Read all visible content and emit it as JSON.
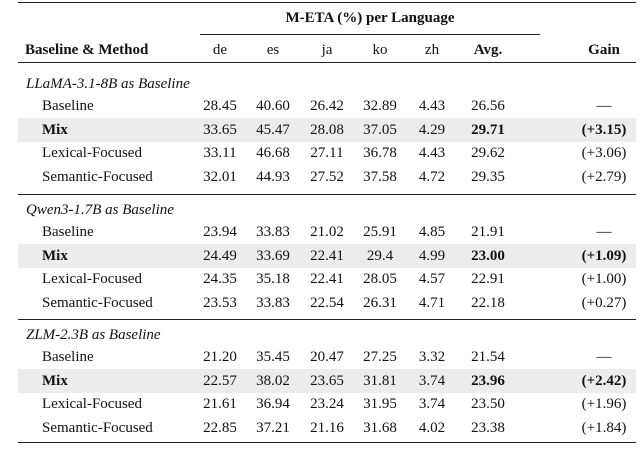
{
  "table": {
    "group_header": "M-ETA (%) per Language",
    "columns": [
      "Baseline & Method",
      "de",
      "es",
      "ja",
      "ko",
      "zh",
      "Avg.",
      "Gain"
    ],
    "groups": [
      {
        "title": "LLaMA-3.1-8B as Baseline",
        "rows": [
          [
            "Baseline",
            "28.45",
            "40.60",
            "26.42",
            "32.89",
            "4.43",
            "26.56",
            "—"
          ],
          [
            "Mix",
            "33.65",
            "45.47",
            "28.08",
            "37.05",
            "4.29",
            "29.71",
            "(+3.15)"
          ],
          [
            "Lexical-Focused",
            "33.11",
            "46.68",
            "27.11",
            "36.78",
            "4.43",
            "29.62",
            "(+3.06)"
          ],
          [
            "Semantic-Focused",
            "32.01",
            "44.93",
            "27.52",
            "37.58",
            "4.72",
            "29.35",
            "(+2.79)"
          ]
        ]
      },
      {
        "title": "Qwen3-1.7B as Baseline",
        "rows": [
          [
            "Baseline",
            "23.94",
            "33.83",
            "21.02",
            "25.91",
            "4.85",
            "21.91",
            "—"
          ],
          [
            "Mix",
            "24.49",
            "33.69",
            "22.41",
            "29.4",
            "4.99",
            "23.00",
            "(+1.09)"
          ],
          [
            "Lexical-Focused",
            "24.35",
            "35.18",
            "22.41",
            "28.05",
            "4.57",
            "22.91",
            "(+1.00)"
          ],
          [
            "Semantic-Focused",
            "23.53",
            "33.83",
            "22.54",
            "26.31",
            "4.71",
            "22.18",
            "(+0.27)"
          ]
        ]
      },
      {
        "title": "ZLM-2.3B as Baseline",
        "rows": [
          [
            "Baseline",
            "21.20",
            "35.45",
            "20.47",
            "27.25",
            "3.32",
            "21.54",
            "—"
          ],
          [
            "Mix",
            "22.57",
            "38.02",
            "23.65",
            "31.81",
            "3.74",
            "23.96",
            "(+2.42)"
          ],
          [
            "Lexical-Focused",
            "21.61",
            "36.94",
            "23.24",
            "31.95",
            "3.74",
            "23.50",
            "(+1.96)"
          ],
          [
            "Semantic-Focused",
            "22.85",
            "37.21",
            "21.16",
            "31.68",
            "4.02",
            "23.38",
            "(+1.84)"
          ]
        ]
      }
    ]
  }
}
